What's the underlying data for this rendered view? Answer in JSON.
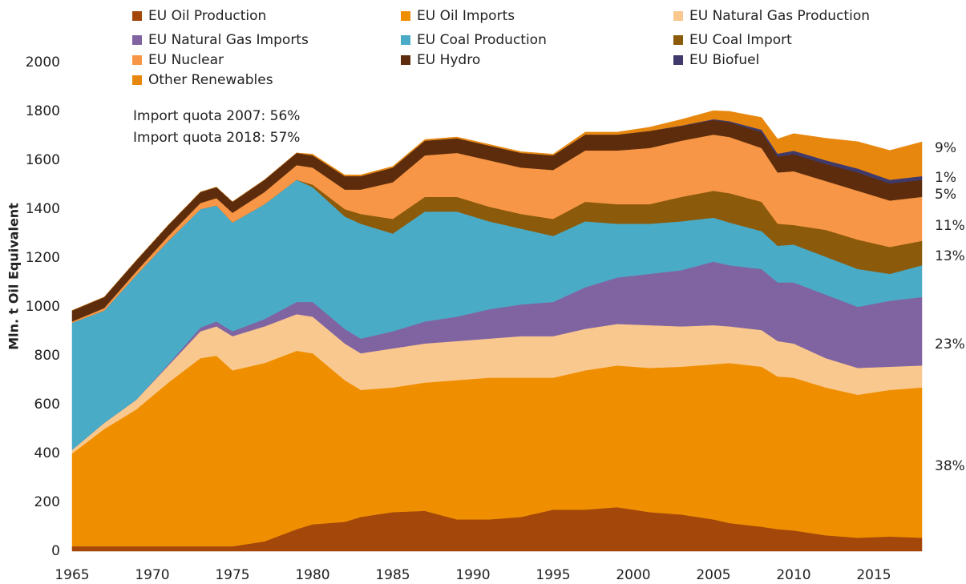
{
  "chart_data": {
    "type": "stacked_area",
    "y_label": "Mln. t Oil Equivalent",
    "annotations": [
      "Import quota 2007: 56%",
      "Import quota 2018: 57%"
    ],
    "right_labels": [
      "9%",
      "1%",
      "5%",
      "11%",
      "13%",
      "23%",
      "38%"
    ],
    "x": [
      1965,
      1967,
      1969,
      1971,
      1973,
      1974,
      1975,
      1977,
      1979,
      1980,
      1982,
      1983,
      1985,
      1987,
      1989,
      1991,
      1993,
      1995,
      1997,
      1999,
      2001,
      2003,
      2005,
      2006,
      2008,
      2009,
      2010,
      2012,
      2014,
      2016,
      2018
    ],
    "xlim": [
      1965,
      2018.5
    ],
    "xticks": [
      1965,
      1970,
      1975,
      1980,
      1985,
      1990,
      1995,
      2000,
      2005,
      2010,
      2015
    ],
    "ylim": [
      0,
      2000
    ],
    "yticks": [
      0,
      200,
      400,
      600,
      800,
      1000,
      1200,
      1400,
      1600,
      1800,
      2000
    ],
    "series": [
      {
        "name": "EU Oil Production",
        "color": "#a4470a",
        "values": [
          20,
          20,
          20,
          20,
          20,
          20,
          20,
          40,
          90,
          110,
          120,
          140,
          160,
          165,
          130,
          130,
          140,
          170,
          170,
          180,
          160,
          150,
          130,
          115,
          100,
          90,
          85,
          65,
          55,
          60,
          55
        ]
      },
      {
        "name": "EU Oil Imports",
        "color": "#ef8f00",
        "values": [
          380,
          480,
          560,
          670,
          770,
          780,
          720,
          730,
          730,
          700,
          580,
          520,
          510,
          525,
          570,
          580,
          570,
          540,
          570,
          580,
          590,
          605,
          635,
          655,
          655,
          625,
          625,
          605,
          585,
          600,
          615
        ]
      },
      {
        "name": "EU Natural Gas Production",
        "color": "#f9c88e",
        "values": [
          15,
          25,
          40,
          70,
          110,
          120,
          140,
          150,
          150,
          150,
          150,
          150,
          160,
          160,
          160,
          160,
          170,
          170,
          170,
          170,
          175,
          165,
          160,
          150,
          150,
          145,
          140,
          120,
          110,
          95,
          90
        ]
      },
      {
        "name": "EU Natural Gas Imports",
        "color": "#8064a2",
        "values": [
          0,
          0,
          0,
          5,
          15,
          20,
          20,
          30,
          50,
          60,
          60,
          60,
          70,
          90,
          100,
          120,
          130,
          140,
          170,
          190,
          210,
          230,
          260,
          250,
          250,
          240,
          250,
          260,
          250,
          270,
          280
        ]
      },
      {
        "name": "EU Coal Production",
        "color": "#4aabc6",
        "values": [
          520,
          460,
          510,
          505,
          485,
          475,
          445,
          470,
          500,
          470,
          460,
          470,
          400,
          450,
          430,
          360,
          310,
          270,
          270,
          220,
          205,
          200,
          180,
          175,
          155,
          150,
          155,
          155,
          155,
          110,
          130
        ]
      },
      {
        "name": "EU Coal Import",
        "color": "#8b5a0a",
        "values": [
          0,
          0,
          0,
          0,
          0,
          0,
          0,
          0,
          0,
          10,
          30,
          40,
          60,
          60,
          60,
          60,
          60,
          70,
          80,
          80,
          80,
          100,
          110,
          120,
          120,
          90,
          80,
          110,
          120,
          110,
          100
        ]
      },
      {
        "name": "EU Nuclear",
        "color": "#f79646",
        "values": [
          5,
          10,
          15,
          20,
          25,
          30,
          40,
          50,
          60,
          70,
          80,
          100,
          150,
          170,
          180,
          190,
          190,
          200,
          210,
          220,
          230,
          230,
          230,
          230,
          220,
          210,
          220,
          200,
          200,
          190,
          180
        ]
      },
      {
        "name": "EU Hydro",
        "color": "#5c2c0c",
        "values": [
          45,
          45,
          45,
          45,
          45,
          45,
          45,
          50,
          50,
          50,
          55,
          55,
          60,
          60,
          60,
          60,
          60,
          60,
          65,
          65,
          70,
          60,
          60,
          60,
          65,
          65,
          70,
          70,
          75,
          70,
          70
        ]
      },
      {
        "name": "EU Biofuel",
        "color": "#3f3a6b",
        "values": [
          0,
          0,
          0,
          0,
          0,
          0,
          0,
          0,
          0,
          0,
          0,
          0,
          0,
          0,
          0,
          0,
          0,
          0,
          0,
          0,
          0,
          2,
          3,
          5,
          10,
          12,
          14,
          15,
          16,
          15,
          15
        ]
      },
      {
        "name": "Other Renewables",
        "color": "#e8870e",
        "values": [
          0,
          0,
          0,
          0,
          0,
          0,
          0,
          0,
          0,
          5,
          5,
          5,
          5,
          5,
          5,
          5,
          5,
          5,
          10,
          10,
          15,
          25,
          35,
          40,
          50,
          60,
          70,
          90,
          110,
          120,
          140
        ]
      }
    ]
  }
}
